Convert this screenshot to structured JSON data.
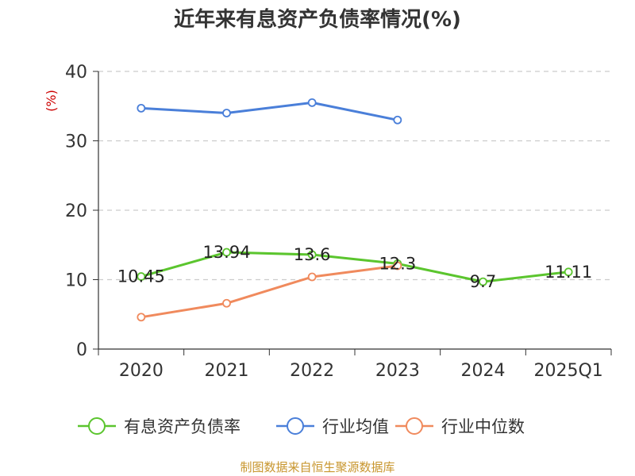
{
  "chart_data": {
    "type": "line",
    "title": "近年来有息资产负债率情况(%)",
    "ylabel": "(%)",
    "xlabel": "",
    "categories": [
      "2020",
      "2021",
      "2022",
      "2023",
      "2024",
      "2025Q1"
    ],
    "ylim": [
      0,
      40
    ],
    "yticks": [
      0,
      10,
      20,
      30,
      40
    ],
    "grid": true,
    "legend_position": "bottom",
    "series": [
      {
        "name": "有息资产负债率",
        "color": "#5bc52e",
        "values": [
          10.45,
          13.94,
          13.6,
          12.3,
          9.7,
          11.11
        ],
        "labels": [
          "10.45",
          "13.94",
          "13.6",
          "12.3",
          "9.7",
          "11.11"
        ]
      },
      {
        "name": "行业均值",
        "color": "#4a7fd9",
        "values": [
          34.7,
          34.0,
          35.5,
          33.0,
          null,
          null
        ]
      },
      {
        "name": "行业中位数",
        "color": "#f08a5d",
        "values": [
          4.6,
          6.6,
          10.4,
          12.0,
          null,
          null
        ]
      }
    ]
  },
  "footer": {
    "source": "制图数据来自恒生聚源数据库"
  }
}
